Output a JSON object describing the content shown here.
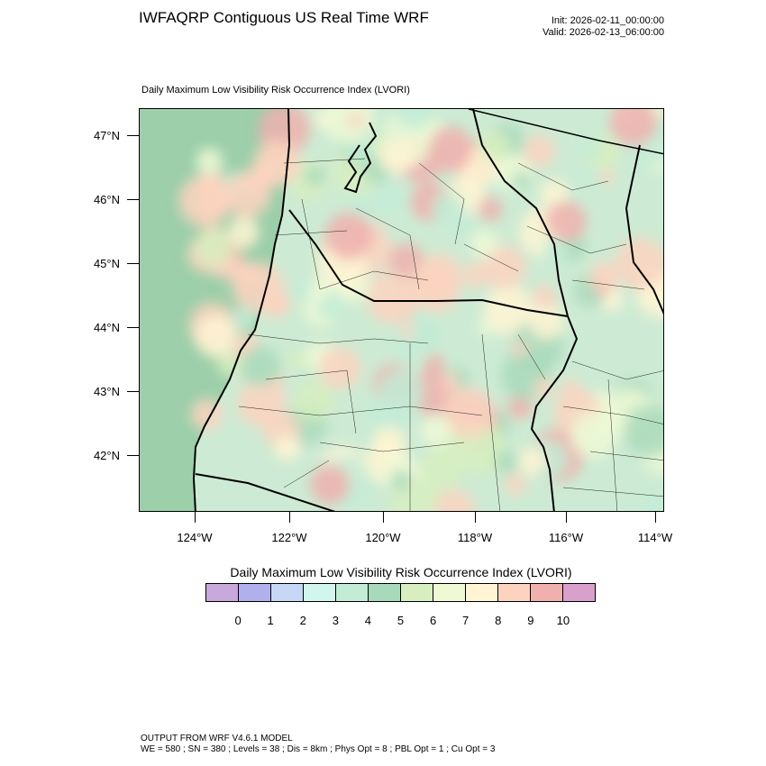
{
  "title": "IWFAQRP Contiguous US Real Time WRF",
  "init_label": "Init: 2026-02-11_00:00:00",
  "valid_label": "Valid: 2026-02-13_06:00:00",
  "subtitle": "Daily Maximum Low Visibility Risk Occurrence Index   (LVORI)",
  "lat_labels": [
    "47°N",
    "46°N",
    "45°N",
    "44°N",
    "43°N",
    "42°N"
  ],
  "lon_labels": [
    "124°W",
    "122°W",
    "120°W",
    "118°W",
    "116°W",
    "114°W"
  ],
  "colorbar": {
    "title": "Daily Maximum Low Visibility Risk Occurrence Index  (LVORI)",
    "labels": [
      "0",
      "1",
      "2",
      "3",
      "4",
      "5",
      "6",
      "7",
      "8",
      "9",
      "10"
    ],
    "colors": [
      "#c9a8dc",
      "#b0b0ec",
      "#c6d8f6",
      "#d0f6ee",
      "#c2ecd6",
      "#a9d9bb",
      "#d7efc0",
      "#eff9d6",
      "#fff4d4",
      "#fbd3c0",
      "#efb0ae",
      "#d9a0cc"
    ]
  },
  "footer_line1": "OUTPUT FROM WRF V4.6.1 MODEL",
  "footer_line2": "WE = 580 ; SN = 380 ; Levels = 38 ; Dis = 8km ; Phys Opt = 8 ; PBL Opt = 1 ; Cu Opt = 3"
}
